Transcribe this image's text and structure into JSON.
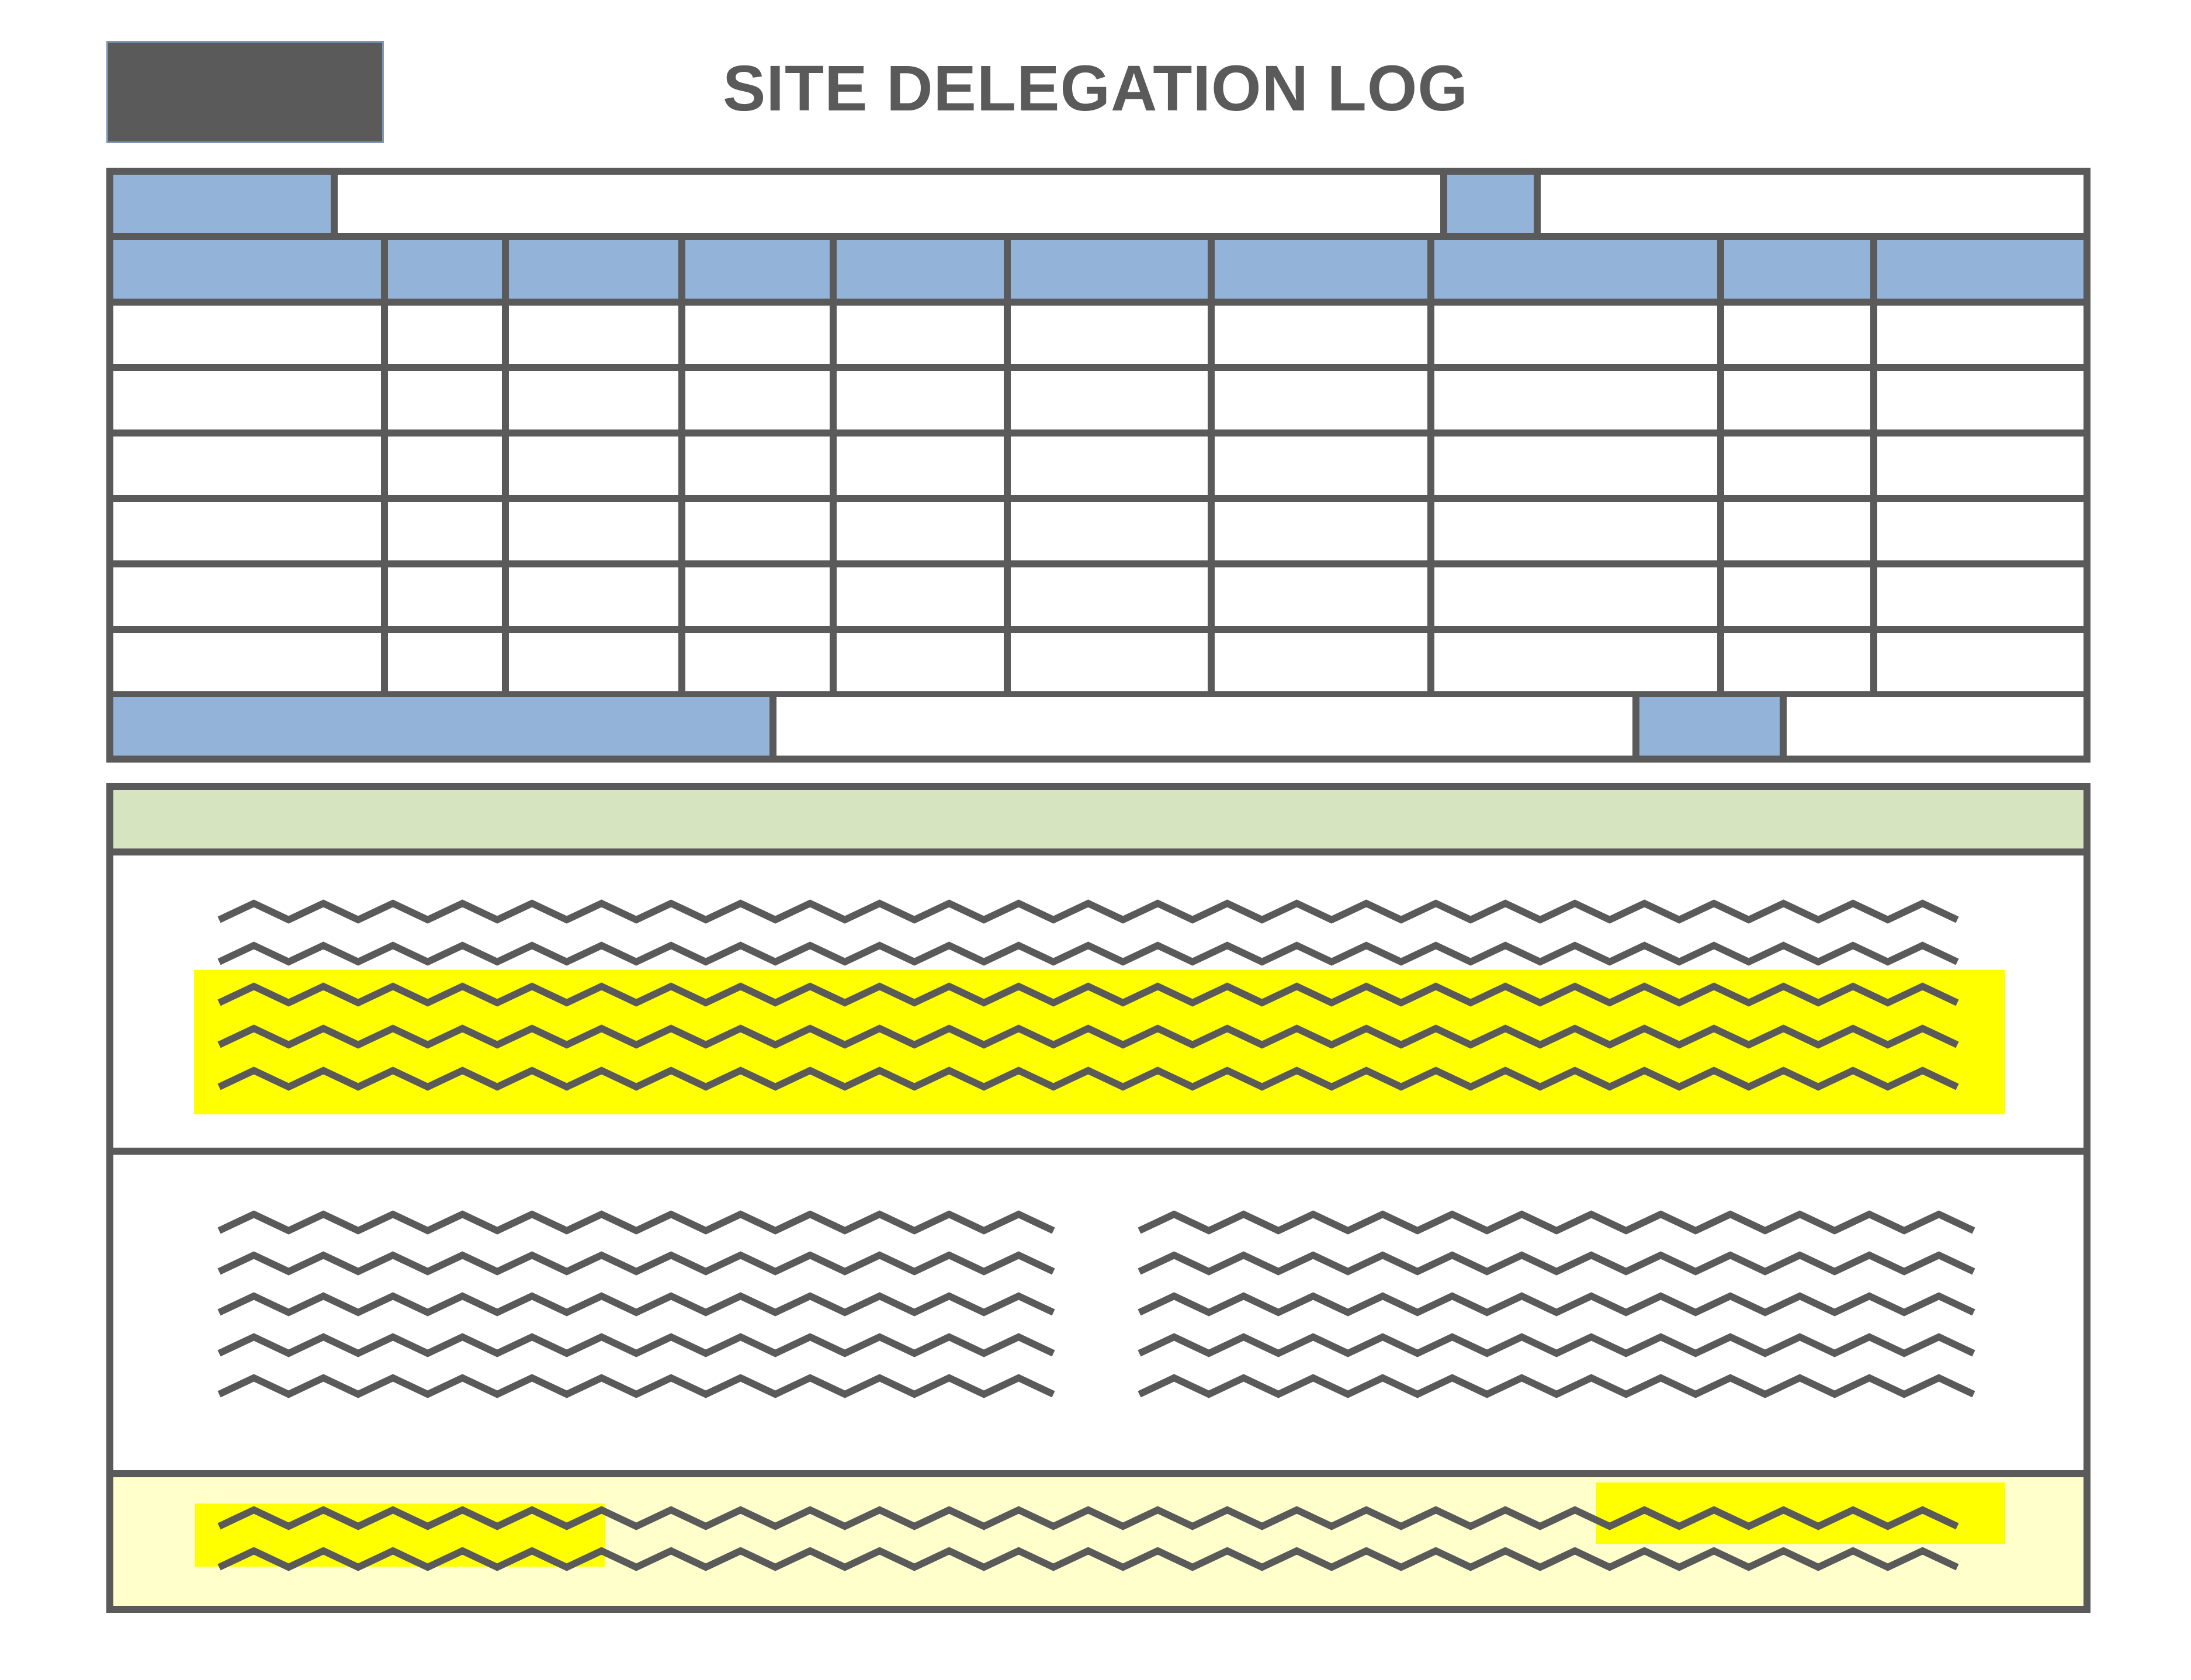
{
  "header": {
    "title": "SITE DELEGATION LOG",
    "logo_color": "#5a5a5a"
  },
  "colors": {
    "border": "#5a5a5a",
    "header_cell": "#94b3d8",
    "section_band": "#d6e4c0",
    "footer_band": "#ffffcc",
    "highlight": "#ffff00"
  },
  "table": {
    "column_count": 10,
    "data_row_count": 6
  },
  "instructions": {
    "redacted_text_lines": 5,
    "highlighted_lines": 3
  },
  "notes_columns": {
    "left_lines": 5,
    "right_lines": 5
  },
  "footer": {
    "lines": 2
  }
}
